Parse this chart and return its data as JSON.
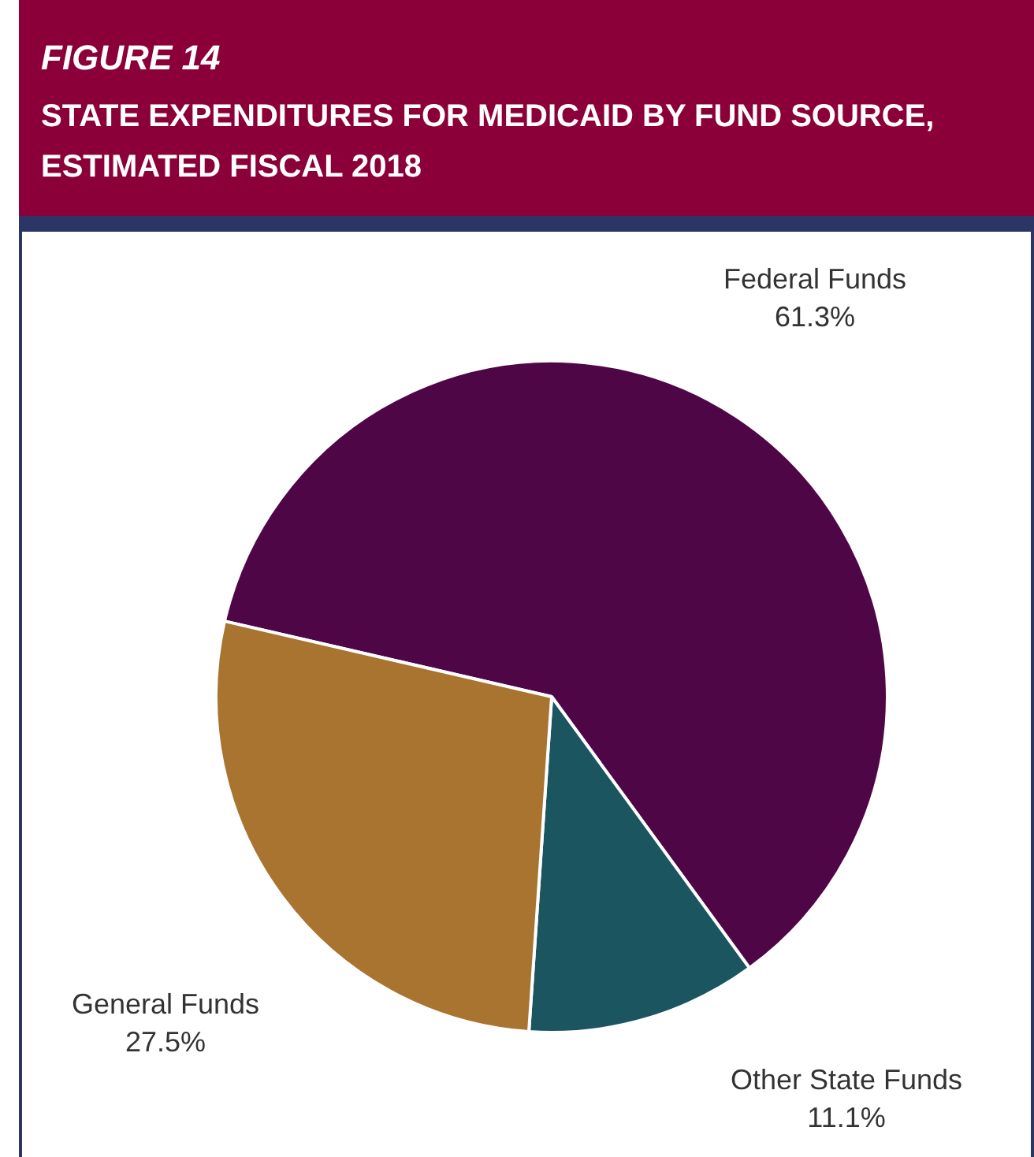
{
  "chart_data": {
    "type": "pie",
    "title": "FIGURE 14",
    "subtitle": "STATE EXPENDITURES FOR MEDICAID BY FUND SOURCE, ESTIMATED FISCAL 2018",
    "categories": [
      "Federal Funds",
      "Other State Funds",
      "General Funds"
    ],
    "values": [
      61.3,
      11.1,
      27.5
    ],
    "value_labels": [
      "61.3%",
      "11.1%",
      "27.5%"
    ],
    "colors": [
      "#4e0646",
      "#1a5560",
      "#a8742f"
    ]
  }
}
